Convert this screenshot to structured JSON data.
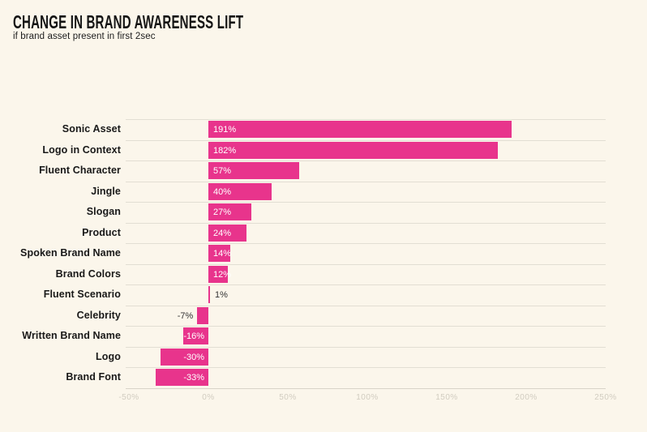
{
  "page": {
    "background": "#FBF6EB"
  },
  "header": {
    "title": "CHANGE IN BRAND AWARENESS LIFT",
    "subtitle": "if brand asset present in first 2sec"
  },
  "chart_data": {
    "type": "bar",
    "orientation": "horizontal",
    "title": "CHANGE IN BRAND AWARENESS LIFT",
    "subtitle": "if brand asset present in first 2sec",
    "categories": [
      "Sonic Asset",
      "Logo in Context",
      "Fluent Character",
      "Jingle",
      "Slogan",
      "Product",
      "Spoken Brand Name",
      "Brand Colors",
      "Fluent Scenario",
      "Celebrity",
      "Written Brand Name",
      "Logo",
      "Brand Font"
    ],
    "values": [
      191,
      182,
      57,
      40,
      27,
      24,
      14,
      12,
      1,
      -7,
      -16,
      -30,
      -33
    ],
    "value_labels": [
      "191%",
      "182%",
      "57%",
      "40%",
      "27%",
      "24%",
      "14%",
      "12%",
      "1%",
      "-7%",
      "-16%",
      "-30%",
      "-33%"
    ],
    "x_ticks": [
      -50,
      0,
      50,
      100,
      150,
      200,
      250
    ],
    "x_tick_labels": [
      "-50%",
      "0%",
      "50%",
      "100%",
      "150%",
      "200%",
      "250%"
    ],
    "xlim": [
      -50,
      250
    ],
    "xlabel": "",
    "ylabel": "",
    "grid": "horizontal-row-separators",
    "legend": "none",
    "bar_color": "#E8348C",
    "gridline_color": "#E2DED3",
    "axis_line_color": "#D9D4C8",
    "tick_label_color": "#D1CCC0",
    "label_inside_color": "#FFFFFF",
    "label_outside_color": "#333333"
  }
}
